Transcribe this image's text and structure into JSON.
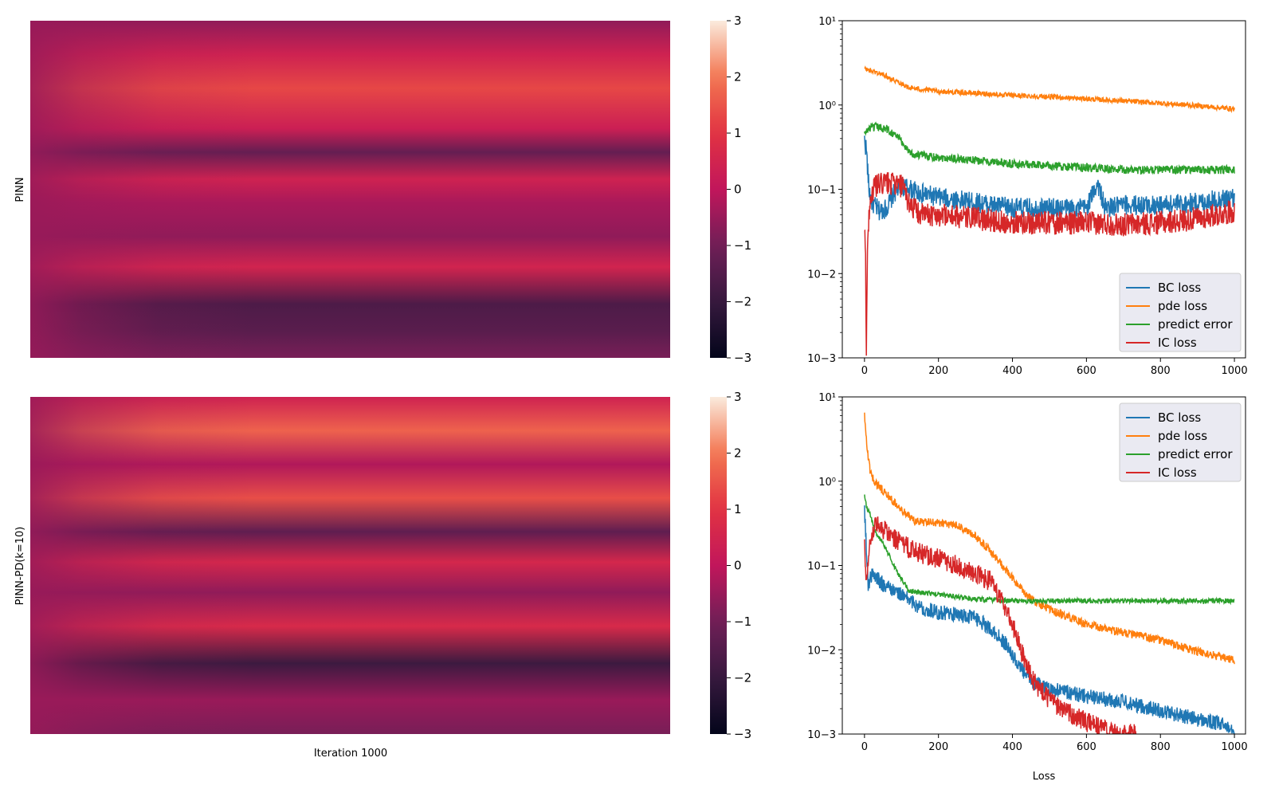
{
  "colors": {
    "blue": "#1f77b4",
    "orange": "#ff7f0e",
    "green": "#2ca02c",
    "red": "#d62728",
    "legend_bg": "#eaeaf2"
  },
  "chart_data": [
    {
      "type": "heatmap",
      "panel": "top-left",
      "ylabel": "PINN",
      "xlabel": "",
      "colormap": "rocket",
      "vmin": -3,
      "vmax": 3,
      "colorbar_ticks": [
        "3",
        "2",
        "1",
        "0",
        "−1",
        "−2",
        "−3"
      ],
      "bands": [
        {
          "pos": 0.0,
          "value": -0.6
        },
        {
          "pos": 0.1,
          "value": 0.4
        },
        {
          "pos": 0.2,
          "value": 1.3
        },
        {
          "pos": 0.32,
          "value": 0.3
        },
        {
          "pos": 0.39,
          "value": -1.2
        },
        {
          "pos": 0.47,
          "value": 0.4
        },
        {
          "pos": 0.54,
          "value": -0.3
        },
        {
          "pos": 0.64,
          "value": -0.6
        },
        {
          "pos": 0.73,
          "value": 0.5
        },
        {
          "pos": 0.84,
          "value": -1.6
        },
        {
          "pos": 0.92,
          "value": -1.4
        },
        {
          "pos": 1.0,
          "value": -0.9
        }
      ]
    },
    {
      "type": "heatmap",
      "panel": "bottom-left",
      "ylabel": "PINN-PD(k=10)",
      "xlabel": "Iteration 1000",
      "colormap": "rocket",
      "vmin": -3,
      "vmax": 3,
      "colorbar_ticks": [
        "3",
        "2",
        "1",
        "0",
        "−1",
        "−2",
        "−3"
      ],
      "bands": [
        {
          "pos": 0.0,
          "value": 0.4
        },
        {
          "pos": 0.1,
          "value": 1.7
        },
        {
          "pos": 0.2,
          "value": -0.2
        },
        {
          "pos": 0.3,
          "value": 1.4
        },
        {
          "pos": 0.4,
          "value": -1.3
        },
        {
          "pos": 0.49,
          "value": 0.6
        },
        {
          "pos": 0.58,
          "value": -0.6
        },
        {
          "pos": 0.68,
          "value": 0.7
        },
        {
          "pos": 0.79,
          "value": -1.9
        },
        {
          "pos": 0.9,
          "value": -0.5
        },
        {
          "pos": 1.0,
          "value": -0.9
        }
      ]
    },
    {
      "type": "line",
      "panel": "top-right",
      "xlabel": "",
      "ylabel": "",
      "yscale": "log",
      "xlim": [
        -60,
        1030
      ],
      "ylim": [
        0.001,
        10
      ],
      "xticks": [
        "0",
        "200",
        "400",
        "600",
        "800",
        "1000"
      ],
      "yticks": [
        "10−3",
        "10−2",
        "10−1",
        "10⁰",
        "10¹"
      ],
      "legend": "bottom-right",
      "legend_entries": [
        "BC loss",
        "pde loss",
        "predict error",
        "IC loss"
      ],
      "series": [
        {
          "name": "BC loss",
          "color": "#1f77b4",
          "x": [
            0,
            5,
            12,
            20,
            40,
            60,
            80,
            100,
            150,
            200,
            300,
            400,
            500,
            600,
            630,
            650,
            700,
            800,
            900,
            1000
          ],
          "y": [
            0.38,
            0.3,
            0.1,
            0.07,
            0.055,
            0.06,
            0.09,
            0.11,
            0.09,
            0.08,
            0.07,
            0.06,
            0.06,
            0.06,
            0.12,
            0.06,
            0.065,
            0.065,
            0.07,
            0.08
          ],
          "noise": 0.12
        },
        {
          "name": "pde loss",
          "color": "#ff7f0e",
          "x": [
            0,
            50,
            100,
            120,
            200,
            300,
            400,
            500,
            600,
            700,
            800,
            900,
            1000
          ],
          "y": [
            2.7,
            2.3,
            1.8,
            1.6,
            1.45,
            1.38,
            1.3,
            1.25,
            1.18,
            1.12,
            1.05,
            0.98,
            0.9
          ],
          "noise": 0.03
        },
        {
          "name": "predict error",
          "color": "#2ca02c",
          "x": [
            0,
            10,
            30,
            60,
            90,
            110,
            130,
            200,
            300,
            400,
            500,
            600,
            700,
            800,
            900,
            1000
          ],
          "y": [
            0.45,
            0.52,
            0.55,
            0.52,
            0.42,
            0.32,
            0.26,
            0.24,
            0.22,
            0.2,
            0.19,
            0.18,
            0.17,
            0.17,
            0.17,
            0.17
          ],
          "noise": 0.05
        },
        {
          "name": "IC loss",
          "color": "#d62728",
          "x": [
            0,
            3,
            5,
            8,
            15,
            30,
            60,
            100,
            120,
            150,
            200,
            300,
            400,
            500,
            600,
            700,
            800,
            900,
            1000
          ],
          "y": [
            0.032,
            0.015,
            0.0012,
            0.02,
            0.08,
            0.11,
            0.12,
            0.11,
            0.07,
            0.05,
            0.05,
            0.045,
            0.04,
            0.04,
            0.04,
            0.038,
            0.04,
            0.045,
            0.055
          ],
          "noise": 0.14
        }
      ]
    },
    {
      "type": "line",
      "panel": "bottom-right",
      "xlabel": "Loss",
      "ylabel": "",
      "yscale": "log",
      "xlim": [
        -60,
        1030
      ],
      "ylim": [
        0.001,
        10
      ],
      "xticks": [
        "0",
        "200",
        "400",
        "600",
        "800",
        "1000"
      ],
      "yticks": [
        "10−3",
        "10−2",
        "10−1",
        "10⁰",
        "10¹"
      ],
      "legend": "top-right",
      "legend_entries": [
        "BC loss",
        "pde loss",
        "predict error",
        "IC loss"
      ],
      "series": [
        {
          "name": "BC loss",
          "color": "#1f77b4",
          "x": [
            0,
            5,
            10,
            20,
            50,
            100,
            150,
            200,
            250,
            300,
            340,
            380,
            420,
            460,
            500,
            600,
            700,
            800,
            900,
            1000
          ],
          "y": [
            0.5,
            0.15,
            0.06,
            0.08,
            0.06,
            0.045,
            0.032,
            0.028,
            0.026,
            0.024,
            0.018,
            0.012,
            0.006,
            0.004,
            0.0035,
            0.0028,
            0.0024,
            0.0019,
            0.0015,
            0.0012
          ],
          "noise": 0.09
        },
        {
          "name": "pde loss",
          "color": "#ff7f0e",
          "x": [
            0,
            5,
            15,
            30,
            60,
            100,
            140,
            200,
            250,
            300,
            340,
            380,
            420,
            450,
            500,
            600,
            700,
            800,
            900,
            1000
          ],
          "y": [
            6.5,
            3.0,
            1.3,
            0.95,
            0.7,
            0.45,
            0.33,
            0.32,
            0.3,
            0.22,
            0.15,
            0.09,
            0.055,
            0.04,
            0.03,
            0.02,
            0.016,
            0.013,
            0.0095,
            0.0075
          ],
          "noise": 0.05
        },
        {
          "name": "predict error",
          "color": "#2ca02c",
          "x": [
            0,
            5,
            15,
            30,
            60,
            90,
            120,
            150,
            200,
            300,
            400,
            500,
            600,
            700,
            800,
            900,
            1000
          ],
          "y": [
            0.7,
            0.5,
            0.4,
            0.25,
            0.15,
            0.08,
            0.05,
            0.048,
            0.045,
            0.04,
            0.038,
            0.038,
            0.038,
            0.038,
            0.038,
            0.038,
            0.038
          ],
          "noise": 0.03
        },
        {
          "name": "IC loss",
          "color": "#d62728",
          "x": [
            0,
            4,
            8,
            15,
            30,
            60,
            100,
            150,
            200,
            250,
            300,
            340,
            370,
            400,
            430,
            460,
            500,
            550,
            600,
            650,
            680,
            740
          ],
          "y": [
            0.22,
            0.06,
            0.1,
            0.2,
            0.32,
            0.25,
            0.18,
            0.14,
            0.12,
            0.1,
            0.08,
            0.065,
            0.04,
            0.02,
            0.008,
            0.004,
            0.0025,
            0.0018,
            0.0014,
            0.0011,
            0.001,
            0.001
          ],
          "noise": 0.12
        }
      ]
    }
  ]
}
